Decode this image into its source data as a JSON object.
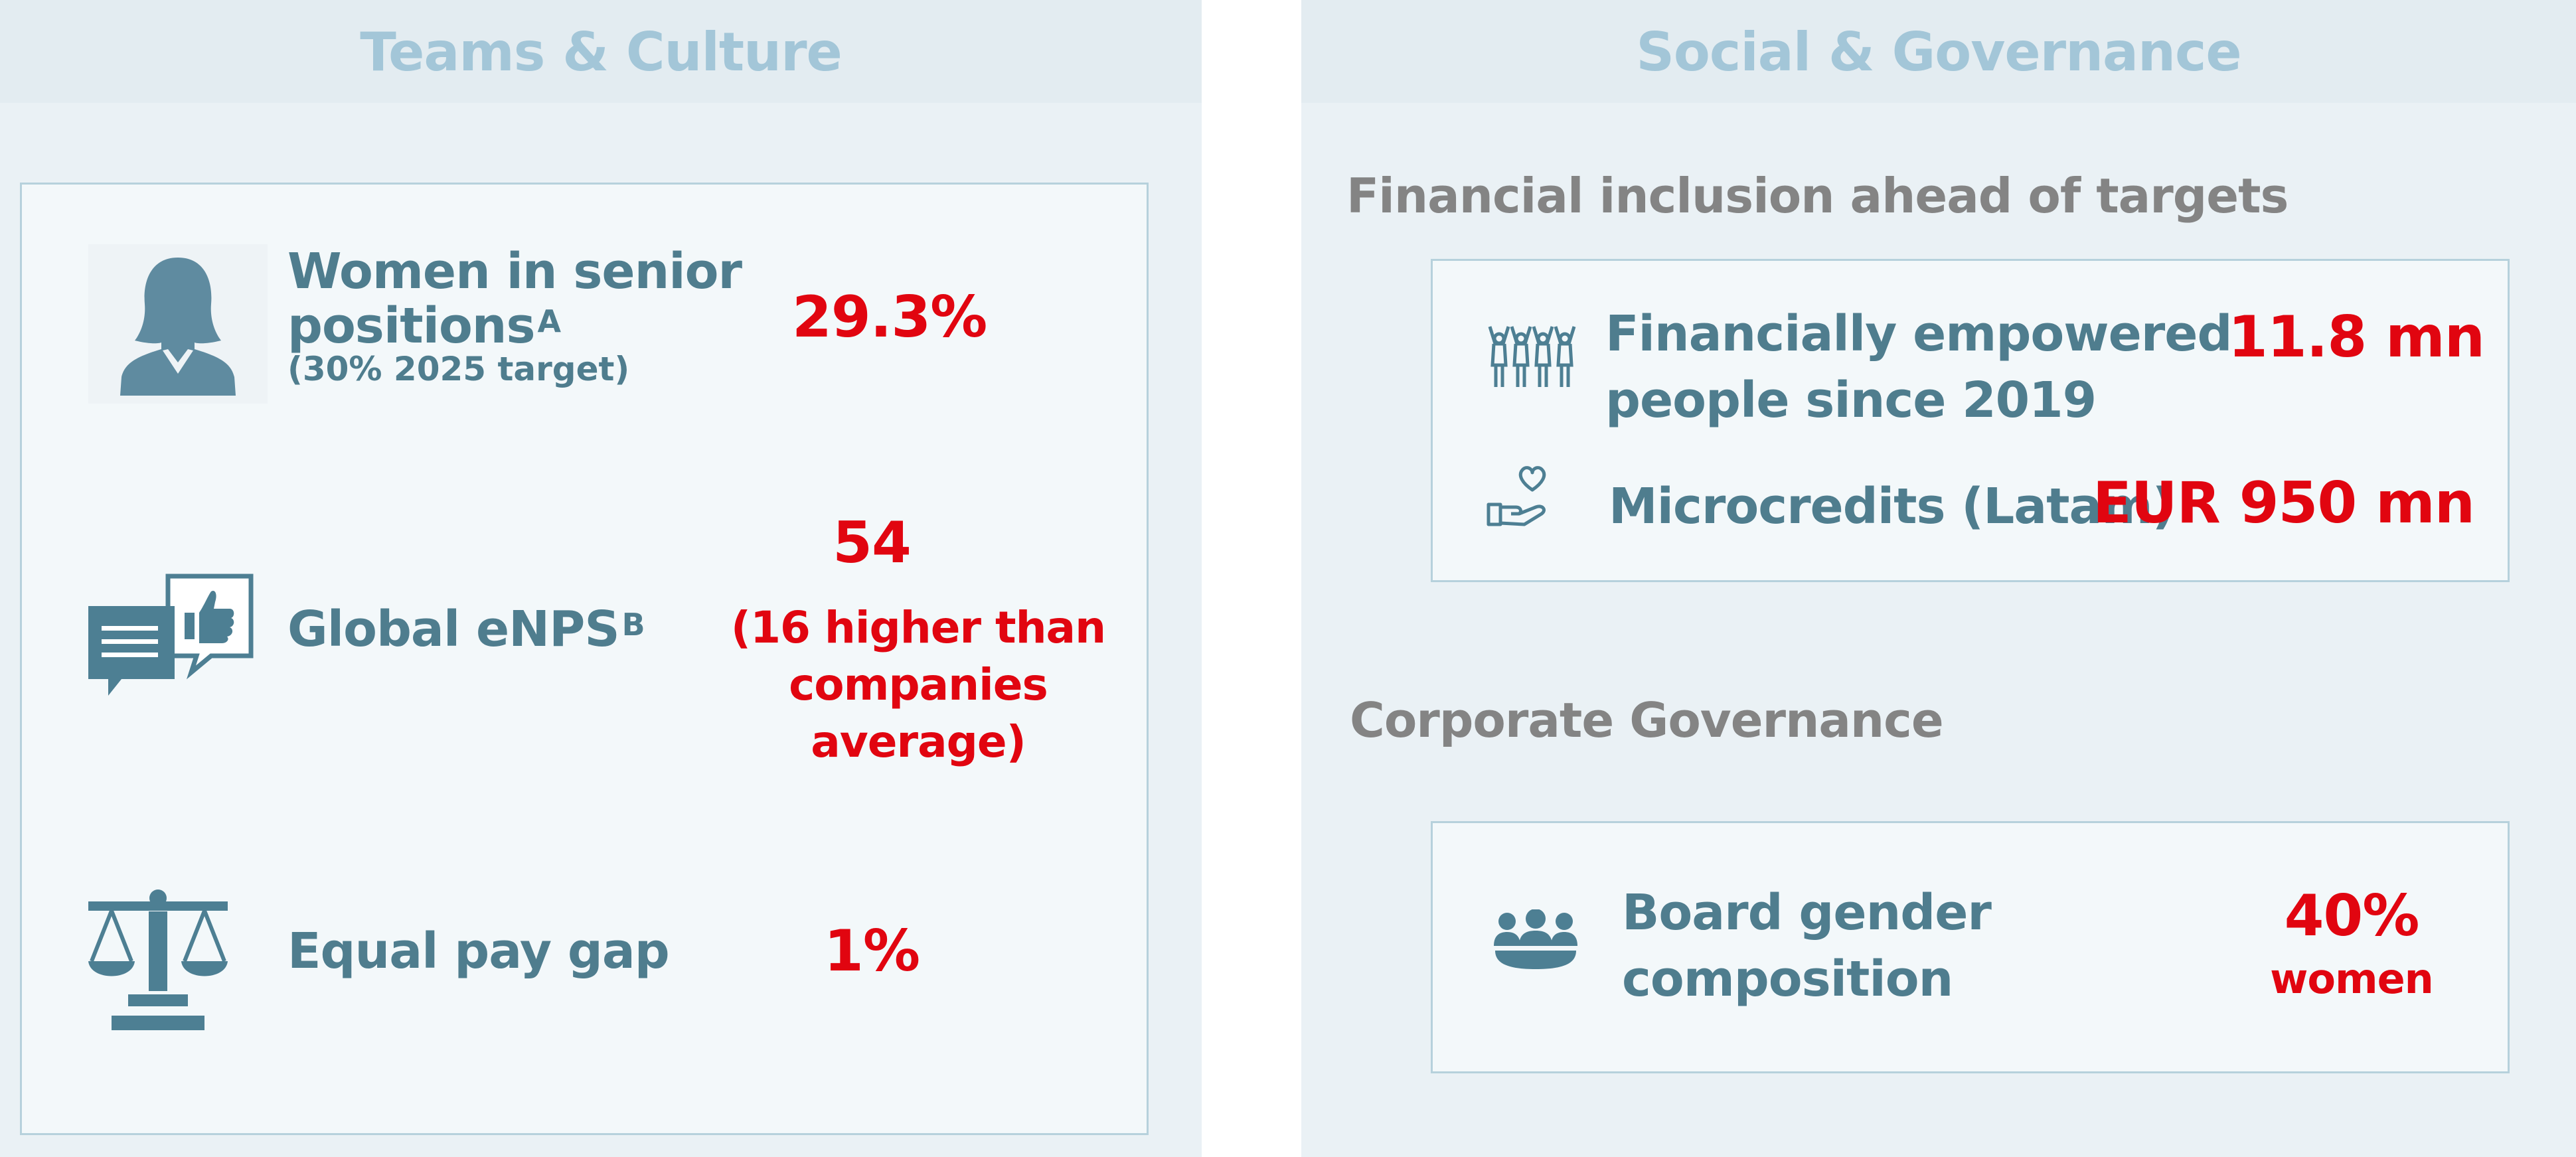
{
  "colors": {
    "panel_bg": "#eaf1f5",
    "header_text": "#a3c6d8",
    "label_text": "#4f7d8e",
    "value_red": "#e10510",
    "section_grey": "#848484",
    "icon_blue": "#4d7f93"
  },
  "left_panel": {
    "title": "Teams & Culture",
    "items": [
      {
        "icon": "woman-icon",
        "label": "Women in senior positions",
        "label_line1": "Women in senior",
        "label_line2": "positions",
        "superscript": "A",
        "note": "(30% 2025 target)",
        "value": "29.3%"
      },
      {
        "icon": "speech-thumbs-up-icon",
        "label": "Global eNPS",
        "superscript": "B",
        "value": "54",
        "value_note_line1": "(16 higher than",
        "value_note_line2": "companies average)"
      },
      {
        "icon": "scales-icon",
        "label": "Equal pay gap",
        "value": "1%"
      }
    ]
  },
  "right_panel": {
    "title": "Social & Governance",
    "financial": {
      "title": "Financial inclusion ahead of targets",
      "items": [
        {
          "icon": "people-raising-hands-icon",
          "label_line1": "Financially empowered",
          "label_line2": "people since 2019",
          "value": "11.8 mn"
        },
        {
          "icon": "heart-hand-icon",
          "label": "Microcredits (Latam)",
          "value": "EUR 950 mn"
        }
      ]
    },
    "governance": {
      "title": "Corporate Governance",
      "item": {
        "icon": "group-meeting-icon",
        "label_line1": "Board gender",
        "label_line2": "composition",
        "value": "40%",
        "value_note": "women"
      }
    }
  }
}
